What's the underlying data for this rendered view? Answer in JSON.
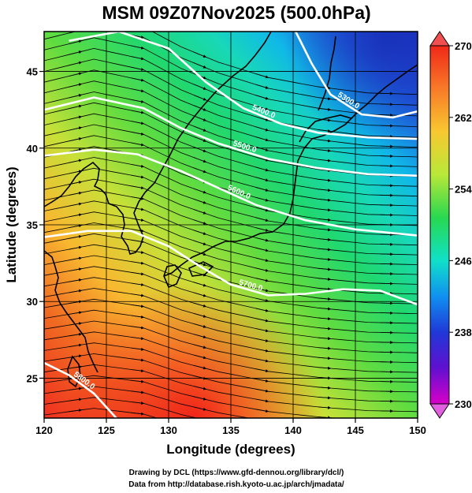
{
  "title": "MSM 09Z07Nov2025 (500.0hPa)",
  "xlabel": "Longitude (degrees)",
  "ylabel": "Latitude  (degrees)",
  "credits": [
    "Drawing by DCL (https://www.gfd-dennou.org/library/dcl/)",
    "Data from http://database.rish.kyoto-u.ac.jp/arch/jmadata/"
  ],
  "chart_data": {
    "type": "heatmap",
    "description_of_field": "Temperature shading with geopotential height contours and wind streamlines",
    "xlim": [
      120,
      150
    ],
    "ylim": [
      22.4,
      47.6
    ],
    "xticks": [
      "120",
      "125",
      "130",
      "135",
      "140",
      "145",
      "150"
    ],
    "yticks": [
      "25",
      "30",
      "35",
      "40",
      "45"
    ],
    "grid": true,
    "colorbar": {
      "range": [
        230,
        270
      ],
      "ticks": [
        "270",
        "262",
        "254",
        "246",
        "238",
        "230"
      ],
      "colors": [
        "#d800c8",
        "#7a10d8",
        "#2038d8",
        "#1090f0",
        "#10e0d8",
        "#10d868",
        "#48e038",
        "#b8e838",
        "#f8d028",
        "#f89028",
        "#f04828",
        "#e82018"
      ]
    },
    "contour_labels": [
      "5300.0",
      "5400.0",
      "5500.0",
      "5600.0",
      "5700.0",
      "5800.0"
    ],
    "contours": [
      {
        "label": "5300.0",
        "points": [
          [
            140.2,
            47.6
          ],
          [
            141.5,
            45.5
          ],
          [
            143,
            43.5
          ],
          [
            145.5,
            42.2
          ],
          [
            148,
            42.0
          ],
          [
            150,
            42.4
          ]
        ]
      },
      {
        "label": "5400.0",
        "points": [
          [
            122,
            47.0
          ],
          [
            126,
            47.6
          ],
          [
            130,
            46.5
          ],
          [
            133,
            44.3
          ],
          [
            136,
            42.6
          ],
          [
            139,
            41.6
          ],
          [
            142,
            41.0
          ],
          [
            146,
            40.7
          ],
          [
            150,
            40.6
          ]
        ]
      },
      {
        "label": "5500.0",
        "points": [
          [
            120,
            42.5
          ],
          [
            124,
            43.3
          ],
          [
            128,
            42.6
          ],
          [
            131,
            41.3
          ],
          [
            134,
            40.3
          ],
          [
            138,
            39.3
          ],
          [
            142,
            38.7
          ],
          [
            146,
            38.3
          ],
          [
            150,
            38.2
          ]
        ]
      },
      {
        "label": "5600.0",
        "points": [
          [
            120,
            39.5
          ],
          [
            124,
            39.9
          ],
          [
            127.5,
            39.6
          ],
          [
            131,
            38.5
          ],
          [
            134,
            37.4
          ],
          [
            137,
            36.3
          ],
          [
            141,
            35.3
          ],
          [
            145,
            34.7
          ],
          [
            150,
            34.3
          ]
        ]
      },
      {
        "label": "5700.0",
        "points": [
          [
            120,
            34.2
          ],
          [
            123.5,
            34.6
          ],
          [
            127,
            34.6
          ],
          [
            130,
            33.6
          ],
          [
            132.5,
            32.3
          ],
          [
            135,
            31.1
          ],
          [
            138,
            30.4
          ],
          [
            141,
            30.5
          ],
          [
            144,
            30.8
          ],
          [
            147,
            30.7
          ],
          [
            150,
            29.8
          ]
        ]
      },
      {
        "label": "5800.0",
        "points": [
          [
            120,
            26.0
          ],
          [
            122,
            25.2
          ],
          [
            124,
            24.0
          ],
          [
            125.8,
            22.4
          ]
        ]
      }
    ]
  }
}
